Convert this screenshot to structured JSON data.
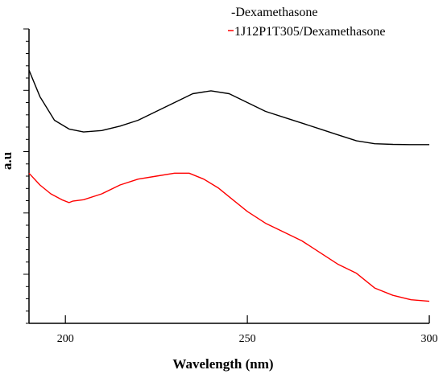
{
  "chart_data": {
    "type": "line",
    "title": "",
    "xlabel": "Wavelength (nm)",
    "ylabel": "a.u",
    "xlim": [
      190,
      300
    ],
    "x_ticks": [
      200,
      250,
      300
    ],
    "y_tick_labels": "none",
    "legend_placement": "top-right",
    "grid": false,
    "series": [
      {
        "name": "Dexamethasone",
        "legend_label": "-Dexamethasone",
        "color": "#000000",
        "legend_dash_color": "#000000",
        "x": [
          190,
          193,
          197,
          201,
          205,
          210,
          215,
          220,
          225,
          230,
          235,
          240,
          245,
          250,
          255,
          260,
          265,
          270,
          275,
          280,
          285,
          290,
          295,
          300
        ],
        "y": [
          0.86,
          0.77,
          0.69,
          0.66,
          0.65,
          0.655,
          0.67,
          0.69,
          0.72,
          0.75,
          0.78,
          0.79,
          0.78,
          0.75,
          0.72,
          0.7,
          0.68,
          0.66,
          0.64,
          0.62,
          0.61,
          0.608,
          0.607,
          0.607
        ]
      },
      {
        "name": "1J12P1T305/Dexamethasone",
        "legend_label": "1J12P1T305/Dexamethasone",
        "color": "#ff0000",
        "legend_dash_color": "#ff0000",
        "x": [
          190,
          193,
          196,
          199,
          201,
          202,
          205,
          210,
          215,
          220,
          225,
          230,
          234,
          238,
          242,
          246,
          250,
          255,
          260,
          265,
          270,
          275,
          280,
          285,
          290,
          295,
          300
        ],
        "y": [
          0.51,
          0.47,
          0.44,
          0.42,
          0.41,
          0.415,
          0.42,
          0.44,
          0.47,
          0.49,
          0.5,
          0.51,
          0.51,
          0.49,
          0.46,
          0.42,
          0.38,
          0.34,
          0.31,
          0.28,
          0.24,
          0.2,
          0.17,
          0.12,
          0.095,
          0.08,
          0.075
        ]
      }
    ]
  }
}
